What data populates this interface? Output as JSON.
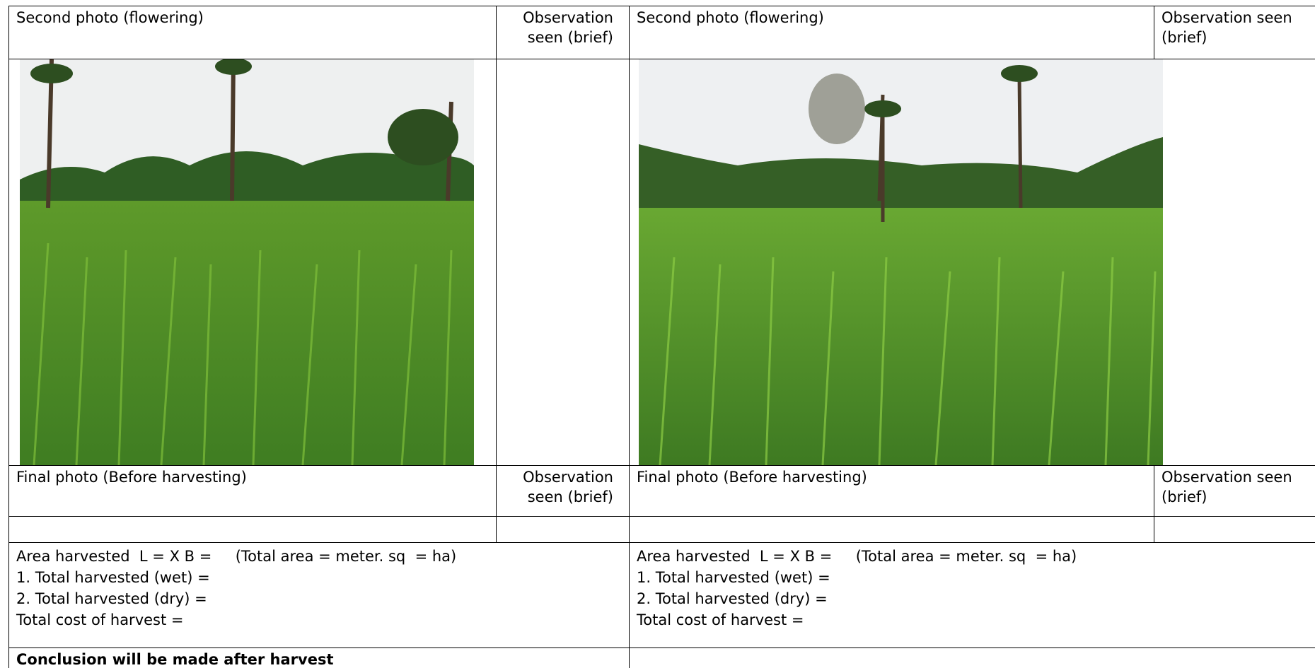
{
  "left": {
    "flowering_header": "Second photo (flowering)",
    "flowering_observation_header": "Observation seen (brief)",
    "final_header": "Final photo (Before harvesting)",
    "final_observation_header": "Observation seen (brief)",
    "harvest_lines": [
      "Area harvested  L = X B =     (Total area = meter. sq  = ha)",
      "1. Total harvested (wet) =",
      "2. Total harvested (dry) =",
      "Total cost of harvest ="
    ],
    "conclusion": "Conclusion will be made after harvest"
  },
  "right": {
    "flowering_header": "Second photo (flowering)",
    "flowering_observation_header": "Observation seen (brief)",
    "final_header": "Final photo (Before harvesting)",
    "final_observation_header": "Observation seen (brief)",
    "harvest_lines": [
      "Area harvested  L = X B =     (Total area = meter. sq  = ha)",
      "1. Total harvested (wet) =",
      "2. Total harvested (dry) =",
      "Total cost of harvest ="
    ]
  }
}
